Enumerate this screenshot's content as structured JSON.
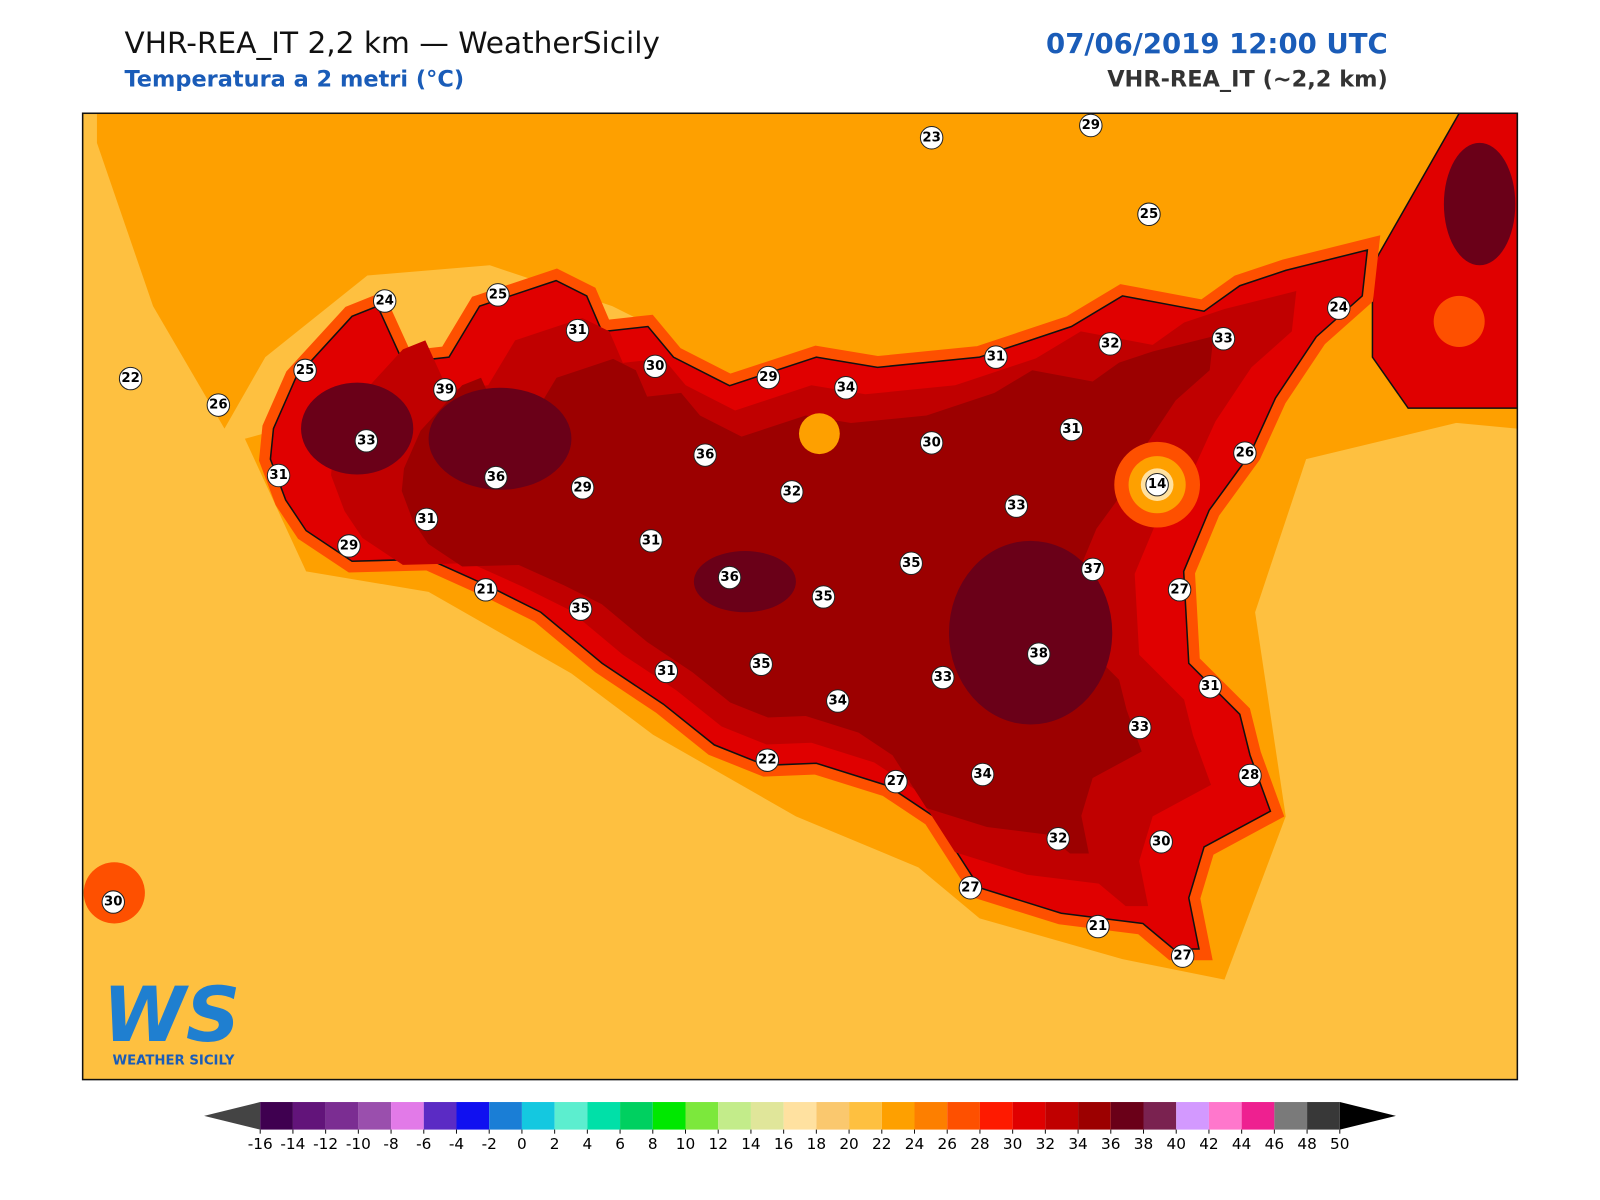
{
  "header": {
    "title": "VHR-REA_IT 2,2 km — WeatherSicily",
    "subtitle": "Temperatura a 2 metri (°C)",
    "datetime": "07/06/2019 12:00 UTC",
    "model": "VHR-REA_IT (~2,2 km)"
  },
  "map": {
    "stations": [
      23,
      29,
      25,
      24,
      25,
      31,
      30,
      29,
      34,
      31,
      32,
      33,
      24,
      22,
      25,
      39,
      26,
      33,
      31,
      36,
      29,
      36,
      32,
      30,
      31,
      14,
      26,
      33,
      31,
      29,
      31,
      35,
      37,
      21,
      36,
      35,
      27,
      35,
      38,
      31,
      35,
      33,
      31,
      34,
      33,
      22,
      34,
      27,
      28,
      32,
      30,
      30,
      27,
      21,
      27
    ]
  },
  "colorbar": {
    "ticks": [
      -16,
      -14,
      -12,
      -10,
      -8,
      -6,
      -4,
      -2,
      0,
      2,
      4,
      6,
      8,
      10,
      12,
      14,
      16,
      18,
      20,
      22,
      24,
      26,
      28,
      30,
      32,
      34,
      36,
      38,
      40,
      42,
      44,
      46,
      48,
      50
    ],
    "colors": [
      "#3f0050",
      "#62147a",
      "#7b2d92",
      "#9a4fad",
      "#e27ae8",
      "#5b2bc4",
      "#1010f0",
      "#1a7ed6",
      "#14c8e0",
      "#5ceecf",
      "#00e0a8",
      "#00d060",
      "#00e800",
      "#7ce83c",
      "#c3ec8a",
      "#e0e69a",
      "#ffe1a0",
      "#fac86e",
      "#fec040",
      "#fea000",
      "#fd7f00",
      "#fe5000",
      "#fe1a00",
      "#e00000",
      "#c00000",
      "#9c0000",
      "#6a0018",
      "#7a2250",
      "#d399ff",
      "#ff77cc",
      "#ee2090",
      "#7a7a7a",
      "#383838"
    ],
    "under_color": "#444444",
    "over_color": "#000000"
  },
  "logo": {
    "mark": "WS",
    "name": "WEATHER SICILY"
  }
}
